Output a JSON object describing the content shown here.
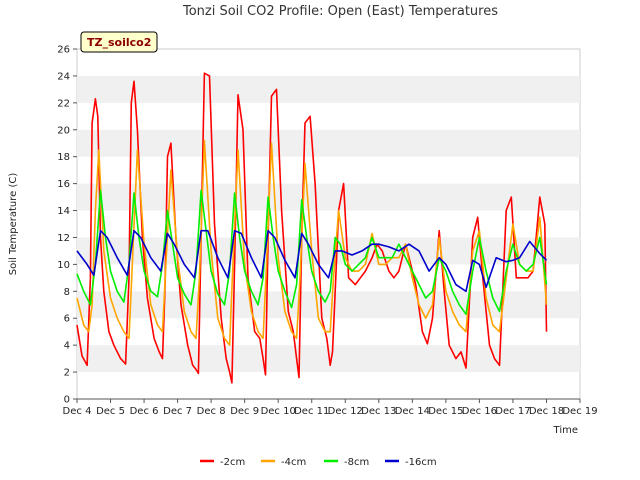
{
  "chart_data": {
    "type": "line",
    "title": "Tonzi Soil CO2 Profile: Open (East) Temperatures",
    "ylabel": "Soil Temperature (C)",
    "xlabel": "Time",
    "ylim": [
      0,
      26
    ],
    "yticks": [
      0,
      2,
      4,
      6,
      8,
      10,
      12,
      14,
      16,
      18,
      20,
      22,
      24,
      26
    ],
    "xlim": [
      4,
      19
    ],
    "xticks": [
      {
        "x": 4,
        "label": "Dec 4"
      },
      {
        "x": 5,
        "label": "Dec 5"
      },
      {
        "x": 6,
        "label": "Dec 6"
      },
      {
        "x": 7,
        "label": "Dec 7"
      },
      {
        "x": 8,
        "label": "Dec 8"
      },
      {
        "x": 9,
        "label": "Dec 9"
      },
      {
        "x": 10,
        "label": "Dec 10"
      },
      {
        "x": 11,
        "label": "Dec 11"
      },
      {
        "x": 12,
        "label": "Dec 12"
      },
      {
        "x": 13,
        "label": "Dec 13"
      },
      {
        "x": 14,
        "label": "Dec 14"
      },
      {
        "x": 15,
        "label": "Dec 15"
      },
      {
        "x": 16,
        "label": "Dec 16"
      },
      {
        "x": 17,
        "label": "Dec 17"
      },
      {
        "x": 18,
        "label": "Dec 18"
      },
      {
        "x": 19,
        "label": "Dec 19"
      }
    ],
    "grid": "horizontal bands",
    "legend_position": "bottom",
    "annotation": "TZ_soilco2",
    "series": [
      {
        "name": "-2cm",
        "color": "#ff0000",
        "x": [
          4.0,
          4.15,
          4.3,
          4.4,
          4.45,
          4.55,
          4.62,
          4.7,
          4.8,
          4.95,
          5.1,
          5.3,
          5.45,
          5.55,
          5.62,
          5.7,
          5.8,
          5.95,
          6.1,
          6.3,
          6.45,
          6.55,
          6.62,
          6.7,
          6.8,
          6.95,
          7.1,
          7.3,
          7.45,
          7.55,
          7.62,
          7.7,
          7.8,
          7.95,
          8.1,
          8.3,
          8.45,
          8.55,
          8.62,
          8.7,
          8.8,
          8.95,
          9.1,
          9.3,
          9.45,
          9.55,
          9.62,
          9.7,
          9.8,
          9.95,
          10.1,
          10.3,
          10.45,
          10.55,
          10.62,
          10.7,
          10.8,
          10.95,
          11.1,
          11.3,
          11.45,
          11.55,
          11.62,
          11.7,
          11.8,
          11.95,
          12.1,
          12.3,
          12.45,
          12.6,
          12.8,
          12.95,
          13.1,
          13.3,
          13.45,
          13.6,
          13.8,
          13.95,
          14.1,
          14.3,
          14.45,
          14.6,
          14.8,
          14.95,
          15.1,
          15.3,
          15.45,
          15.6,
          15.8,
          15.95,
          16.1,
          16.3,
          16.45,
          16.6,
          16.8,
          16.95,
          17.1,
          17.3,
          17.45,
          17.6,
          17.8,
          17.95,
          18.0
        ],
        "y": [
          5.5,
          3.2,
          2.5,
          9.0,
          20.5,
          22.3,
          21.0,
          12.0,
          8.0,
          5.0,
          4.0,
          3.0,
          2.6,
          9.0,
          22.0,
          23.6,
          20.0,
          12.0,
          7.5,
          4.5,
          3.5,
          3.0,
          8.0,
          18.0,
          19.0,
          12.0,
          7.0,
          4.0,
          2.5,
          2.2,
          1.9,
          12.0,
          24.2,
          24.0,
          13.0,
          6.0,
          3.0,
          2.0,
          1.2,
          10.0,
          22.6,
          20.0,
          9.0,
          5.0,
          4.5,
          3.0,
          1.8,
          12.0,
          22.5,
          23.0,
          14.0,
          6.5,
          5.0,
          3.0,
          1.6,
          12.0,
          20.5,
          21.0,
          16.0,
          6.0,
          4.5,
          2.5,
          3.5,
          8.0,
          14.0,
          16.0,
          9.0,
          8.5,
          9.0,
          9.5,
          10.5,
          11.5,
          11.0,
          9.5,
          9.0,
          9.5,
          11.5,
          10.0,
          8.5,
          5.0,
          4.1,
          6.0,
          12.5,
          8.0,
          4.0,
          3.0,
          3.5,
          2.3,
          12.0,
          13.5,
          9.0,
          4.0,
          3.0,
          2.5,
          14.0,
          15.0,
          9.0,
          9.0,
          9.0,
          9.5,
          15.0,
          13.0,
          5.0
        ]
      },
      {
        "name": "-4cm",
        "color": "#ffa500",
        "x": [
          4.0,
          4.2,
          4.35,
          4.45,
          4.55,
          4.65,
          4.8,
          5.0,
          5.2,
          5.4,
          5.55,
          5.65,
          5.8,
          6.0,
          6.2,
          6.4,
          6.55,
          6.65,
          6.8,
          7.0,
          7.2,
          7.4,
          7.55,
          7.65,
          7.8,
          8.0,
          8.2,
          8.4,
          8.55,
          8.65,
          8.8,
          9.0,
          9.2,
          9.4,
          9.55,
          9.65,
          9.8,
          10.0,
          10.2,
          10.4,
          10.55,
          10.65,
          10.8,
          11.0,
          11.2,
          11.4,
          11.55,
          11.65,
          11.8,
          12.0,
          12.2,
          12.4,
          12.6,
          12.8,
          13.0,
          13.2,
          13.4,
          13.6,
          13.8,
          14.0,
          14.2,
          14.4,
          14.6,
          14.8,
          15.0,
          15.2,
          15.4,
          15.6,
          15.8,
          16.0,
          16.2,
          16.4,
          16.6,
          16.8,
          17.0,
          17.2,
          17.4,
          17.6,
          17.8,
          18.0
        ],
        "y": [
          7.5,
          5.5,
          5.0,
          7.0,
          14.0,
          18.5,
          11.0,
          7.5,
          6.0,
          5.0,
          4.5,
          10.0,
          18.5,
          11.5,
          7.0,
          5.5,
          5.0,
          10.0,
          17.0,
          10.5,
          6.5,
          5.0,
          4.5,
          9.0,
          19.2,
          11.0,
          6.0,
          4.5,
          4.0,
          10.0,
          18.5,
          10.0,
          6.5,
          5.0,
          4.5,
          10.0,
          19.0,
          10.5,
          6.5,
          5.0,
          4.5,
          9.0,
          17.5,
          11.0,
          6.0,
          5.0,
          5.0,
          9.0,
          14.0,
          10.5,
          9.5,
          9.5,
          10.0,
          12.3,
          10.0,
          10.0,
          10.5,
          10.5,
          11.5,
          9.0,
          7.0,
          6.0,
          7.0,
          12.0,
          8.0,
          6.5,
          5.5,
          5.0,
          11.0,
          12.5,
          7.5,
          5.5,
          5.0,
          9.0,
          13.0,
          10.0,
          9.5,
          9.5,
          13.5,
          7.0
        ]
      },
      {
        "name": "-8cm",
        "color": "#00ee00",
        "x": [
          4.0,
          4.2,
          4.4,
          4.55,
          4.7,
          4.85,
          5.0,
          5.2,
          5.4,
          5.55,
          5.7,
          5.85,
          6.0,
          6.2,
          6.4,
          6.55,
          6.7,
          6.85,
          7.0,
          7.2,
          7.4,
          7.55,
          7.7,
          7.85,
          8.0,
          8.2,
          8.4,
          8.55,
          8.7,
          8.85,
          9.0,
          9.2,
          9.4,
          9.55,
          9.7,
          9.85,
          10.0,
          10.2,
          10.4,
          10.55,
          10.7,
          10.85,
          11.0,
          11.2,
          11.4,
          11.55,
          11.7,
          11.85,
          12.0,
          12.2,
          12.4,
          12.6,
          12.8,
          13.0,
          13.2,
          13.4,
          13.6,
          13.8,
          14.0,
          14.2,
          14.4,
          14.6,
          14.8,
          15.0,
          15.2,
          15.4,
          15.6,
          15.8,
          16.0,
          16.2,
          16.4,
          16.6,
          16.8,
          17.0,
          17.2,
          17.4,
          17.6,
          17.8,
          18.0
        ],
        "y": [
          9.3,
          8.0,
          7.0,
          10.0,
          15.5,
          12.0,
          9.5,
          8.0,
          7.2,
          10.0,
          15.3,
          12.0,
          9.5,
          8.0,
          7.6,
          10.0,
          14.0,
          11.5,
          9.0,
          7.8,
          7.0,
          9.5,
          15.5,
          12.5,
          9.5,
          7.8,
          7.0,
          9.5,
          15.3,
          12.0,
          9.5,
          8.0,
          7.0,
          9.0,
          15.0,
          12.0,
          9.5,
          8.0,
          6.8,
          8.5,
          14.8,
          12.0,
          9.5,
          8.0,
          7.2,
          8.0,
          12.0,
          11.5,
          10.0,
          9.5,
          10.0,
          10.5,
          12.0,
          10.5,
          10.5,
          10.5,
          11.5,
          10.5,
          9.5,
          8.5,
          7.5,
          8.0,
          10.5,
          9.5,
          8.0,
          7.0,
          6.3,
          9.5,
          12.0,
          9.5,
          7.5,
          6.5,
          9.5,
          11.5,
          10.0,
          9.5,
          10.0,
          12.0,
          8.5
        ]
      },
      {
        "name": "-16cm",
        "color": "#0000cc",
        "x": [
          4.0,
          4.3,
          4.5,
          4.7,
          4.9,
          5.2,
          5.5,
          5.7,
          5.9,
          6.2,
          6.5,
          6.7,
          6.9,
          7.2,
          7.5,
          7.7,
          7.9,
          8.2,
          8.5,
          8.7,
          8.9,
          9.2,
          9.5,
          9.7,
          9.9,
          10.2,
          10.5,
          10.7,
          10.9,
          11.2,
          11.5,
          11.7,
          11.9,
          12.2,
          12.5,
          12.8,
          13.0,
          13.3,
          13.6,
          13.9,
          14.2,
          14.5,
          14.8,
          15.0,
          15.3,
          15.6,
          15.8,
          16.0,
          16.2,
          16.5,
          16.8,
          17.0,
          17.2,
          17.5,
          17.8,
          18.0
        ],
        "y": [
          11.0,
          10.0,
          9.2,
          12.5,
          12.0,
          10.5,
          9.2,
          12.5,
          12.0,
          10.5,
          9.5,
          12.3,
          11.5,
          10.0,
          9.0,
          12.5,
          12.5,
          10.5,
          9.0,
          12.5,
          12.3,
          10.5,
          9.0,
          12.5,
          12.0,
          10.3,
          9.0,
          12.3,
          11.5,
          10.0,
          9.0,
          11.0,
          11.0,
          10.7,
          11.0,
          11.5,
          11.5,
          11.3,
          11.0,
          11.5,
          11.0,
          9.5,
          10.5,
          10.0,
          8.5,
          8.0,
          10.3,
          10.0,
          8.3,
          10.5,
          10.2,
          10.3,
          10.5,
          11.7,
          10.8,
          10.3
        ]
      }
    ]
  }
}
